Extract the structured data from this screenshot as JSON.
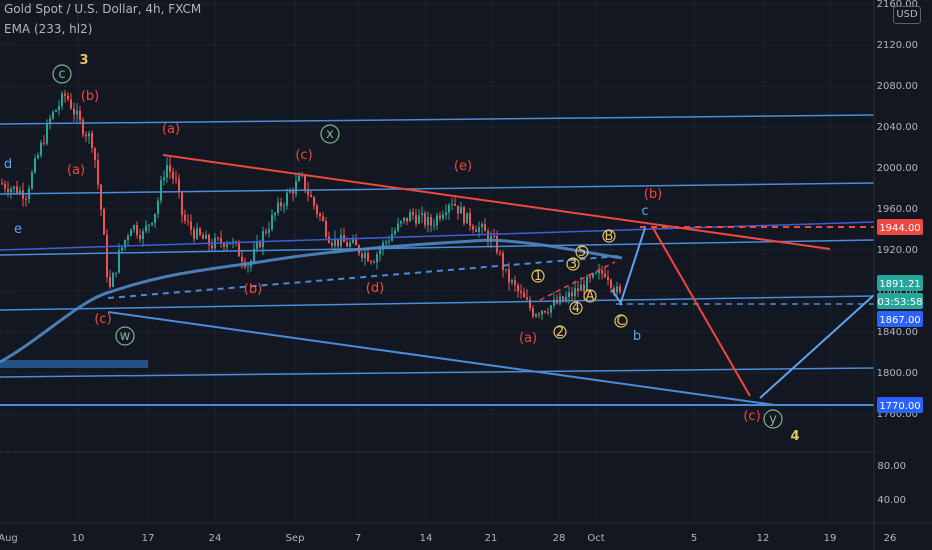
{
  "header": {
    "title": "Gold Spot / U.S. Dollar, 4h, FXCM",
    "indicator": "EMA (233, hl2)",
    "currency_button": "USD"
  },
  "colors": {
    "background": "#131722",
    "grid": "#1e222d",
    "up_candle": "#26a69a",
    "down_candle": "#ef5350",
    "ema": "#4f88c6",
    "line_blue": "#4a8cd9",
    "line_red": "#f0473f",
    "label_red": "#f0473f",
    "label_blue": "#5fa3f0",
    "label_yellow": "#e6c45e",
    "label_green": "#7fb38c"
  },
  "chart_data": {
    "type": "candlestick",
    "y_axis": {
      "range": [
        1705,
        2165
      ],
      "ticks": [
        "2160.00",
        "2120.00",
        "2080.00",
        "2040.00",
        "2000.00",
        "1960.00",
        "1920.00",
        "1880.00",
        "1840.00",
        "1800.00",
        "1760.00"
      ]
    },
    "lower_axis": {
      "ticks": [
        "80.00",
        "40.00"
      ]
    },
    "x_axis": {
      "ticks": [
        "Aug",
        "10",
        "17",
        "24",
        "Sep",
        "7",
        "14",
        "21",
        "28",
        "Oct",
        "5",
        "12",
        "19",
        "26"
      ]
    },
    "price_tags": [
      {
        "label": "1944.00",
        "value": 1944,
        "color": "#f0473f"
      },
      {
        "label": "1891.21",
        "value": 1891.21,
        "color": "#26a69a"
      },
      {
        "label": "03:53:58",
        "value": 1879,
        "color": "#26a69a"
      },
      {
        "label": "1867.00",
        "value": 1867,
        "color": "#2962ff"
      },
      {
        "label": "1770.00",
        "value": 1770,
        "color": "#2962ff"
      }
    ],
    "wave_labels": [
      {
        "text": "d",
        "color": "#5fa3f0"
      },
      {
        "text": "e",
        "color": "#5fa3f0"
      },
      {
        "text": "c",
        "color": "#7fb38c",
        "circled": true
      },
      {
        "text": "3",
        "color": "#e6c45e"
      },
      {
        "text": "(b)",
        "color": "#f0473f"
      },
      {
        "text": "(a)",
        "color": "#f0473f"
      },
      {
        "text": "(c)",
        "color": "#f0473f"
      },
      {
        "text": "w",
        "color": "#7fb38c",
        "circled": true
      },
      {
        "text": "(a)",
        "color": "#f0473f"
      },
      {
        "text": "(b)",
        "color": "#f0473f"
      },
      {
        "text": "x",
        "color": "#7fb38c",
        "circled": true
      },
      {
        "text": "(c)",
        "color": "#f0473f"
      },
      {
        "text": "(d)",
        "color": "#f0473f"
      },
      {
        "text": "(e)",
        "color": "#f0473f"
      },
      {
        "text": "(a)",
        "color": "#f0473f"
      },
      {
        "text": "(b)",
        "color": "#f0473f"
      },
      {
        "text": "c",
        "color": "#5fa3f0"
      },
      {
        "text": "b",
        "color": "#5fa3f0"
      },
      {
        "text": "(c)",
        "color": "#f0473f"
      },
      {
        "text": "y",
        "color": "#7fb38c",
        "circled": true
      },
      {
        "text": "4",
        "color": "#e6c45e"
      },
      {
        "text": "1",
        "color": "#e6c45e",
        "circled": true
      },
      {
        "text": "2",
        "color": "#e6c45e",
        "circled": true
      },
      {
        "text": "3",
        "color": "#e6c45e",
        "circled": true
      },
      {
        "text": "4",
        "color": "#e6c45e",
        "circled": true
      },
      {
        "text": "5",
        "color": "#e6c45e",
        "circled": true
      },
      {
        "text": "A",
        "color": "#e6c45e",
        "circled": true
      },
      {
        "text": "B",
        "color": "#e6c45e",
        "circled": true
      },
      {
        "text": "C",
        "color": "#e6c45e",
        "circled": true
      }
    ]
  }
}
